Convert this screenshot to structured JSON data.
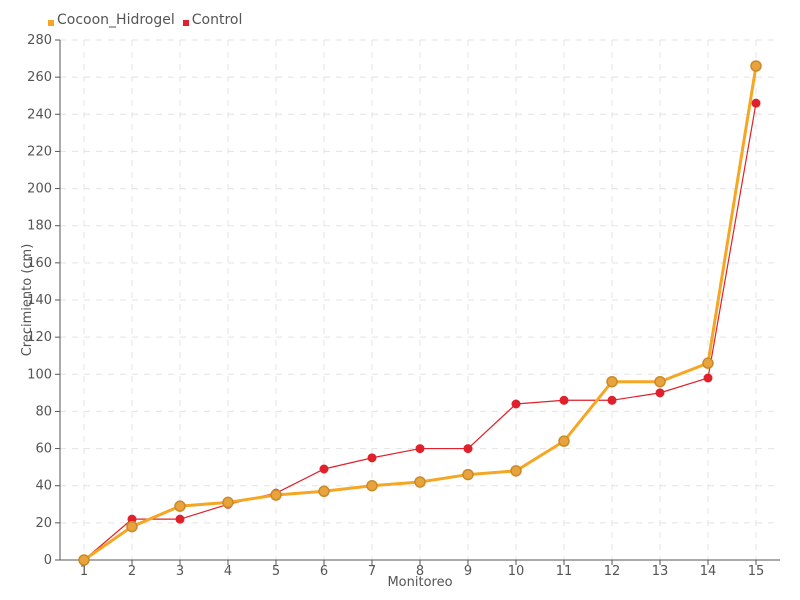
{
  "chart_data": {
    "type": "line",
    "title": "",
    "xlabel": "Monitoreo",
    "ylabel": "Crecimiento (cm)",
    "categories": [
      "1",
      "2",
      "3",
      "4",
      "5",
      "6",
      "7",
      "8",
      "9",
      "10",
      "11",
      "12",
      "13",
      "14",
      "15"
    ],
    "ylim": [
      0,
      280
    ],
    "yticks": [
      0,
      20,
      40,
      60,
      80,
      100,
      120,
      140,
      160,
      180,
      200,
      220,
      240,
      260,
      280
    ],
    "grid": true,
    "legend_position": "top-left",
    "series": [
      {
        "name": "Cocoon_Hidrogel",
        "color": "#f5a623",
        "marker_fill": "#e8a33c",
        "values": [
          0,
          18,
          29,
          31,
          35,
          37,
          40,
          42,
          46,
          48,
          64,
          96,
          96,
          106,
          266
        ]
      },
      {
        "name": "Control",
        "color": "#e0202a",
        "marker_fill": "#e0202a",
        "values": [
          0,
          22,
          22,
          30,
          36,
          49,
          55,
          60,
          60,
          84,
          86,
          86,
          90,
          98,
          246
        ]
      }
    ]
  }
}
